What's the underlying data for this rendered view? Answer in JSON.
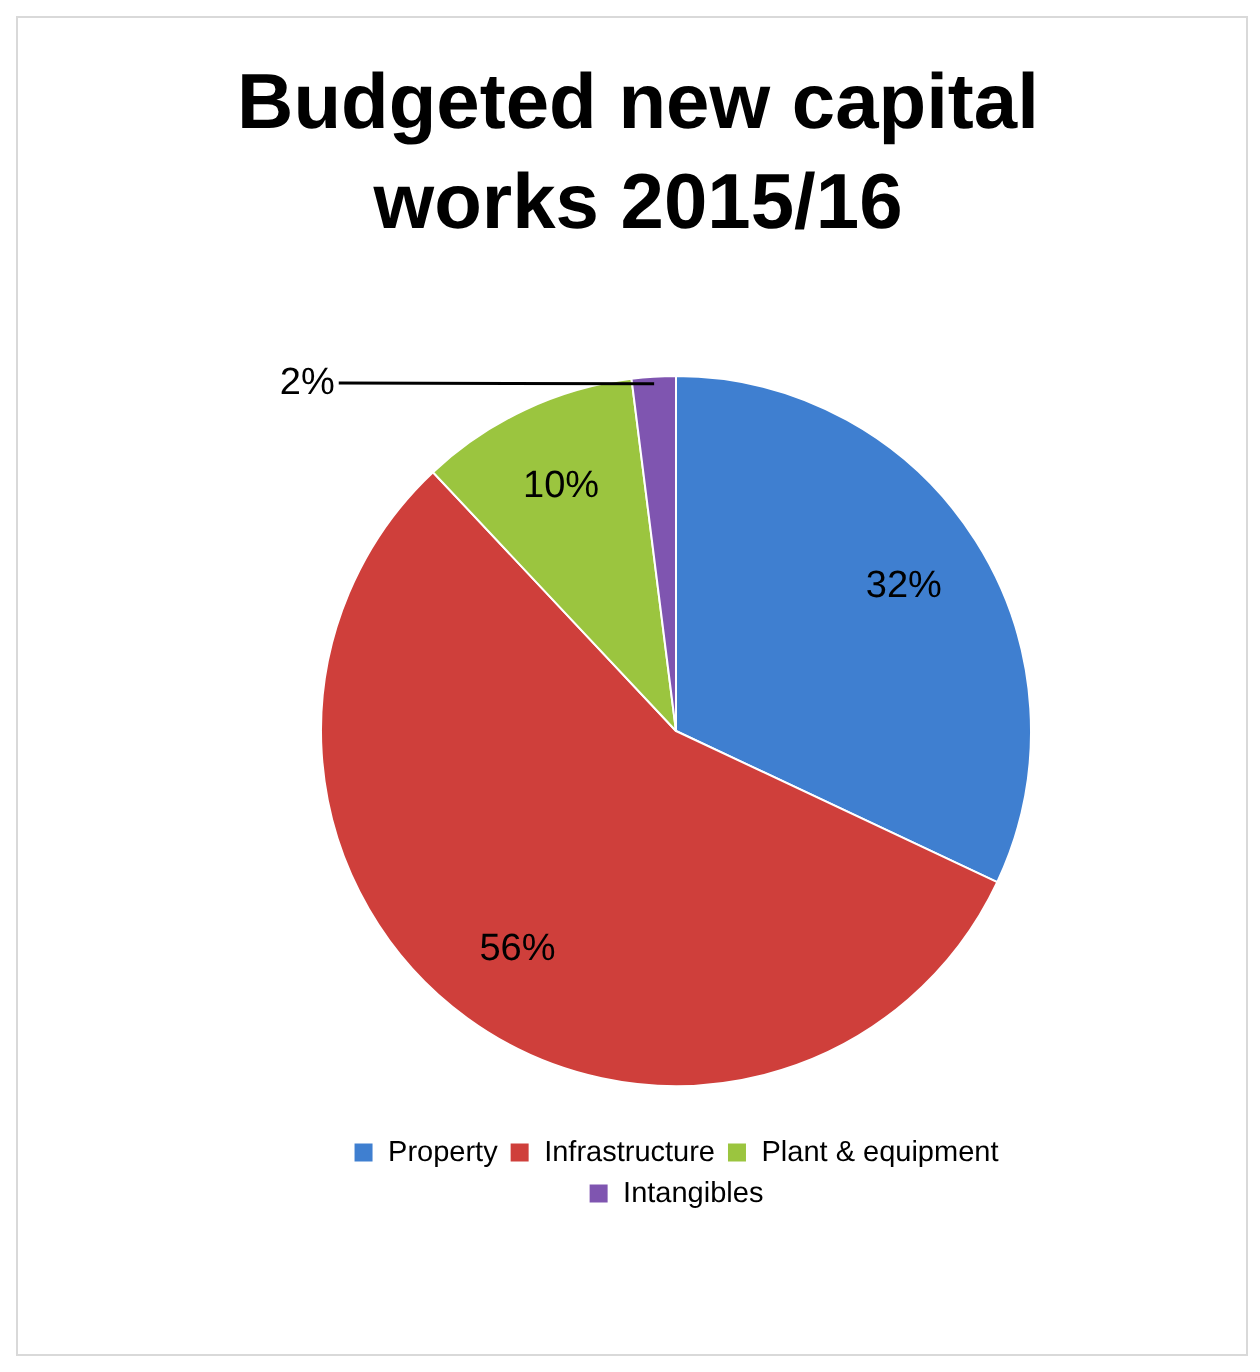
{
  "chart_data": {
    "type": "pie",
    "title": "Budgeted new capital works 2015/16",
    "categories": [
      "Property",
      "Infrastructure",
      "Plant & equipment",
      "Intangibles"
    ],
    "values": [
      32,
      56,
      10,
      2
    ],
    "colors": [
      "#3f7fd0",
      "#cf3f3b",
      "#9bc53f",
      "#7f55b0"
    ],
    "value_labels": [
      "32%",
      "56%",
      "10%",
      "2%"
    ],
    "legend": "bottom"
  }
}
